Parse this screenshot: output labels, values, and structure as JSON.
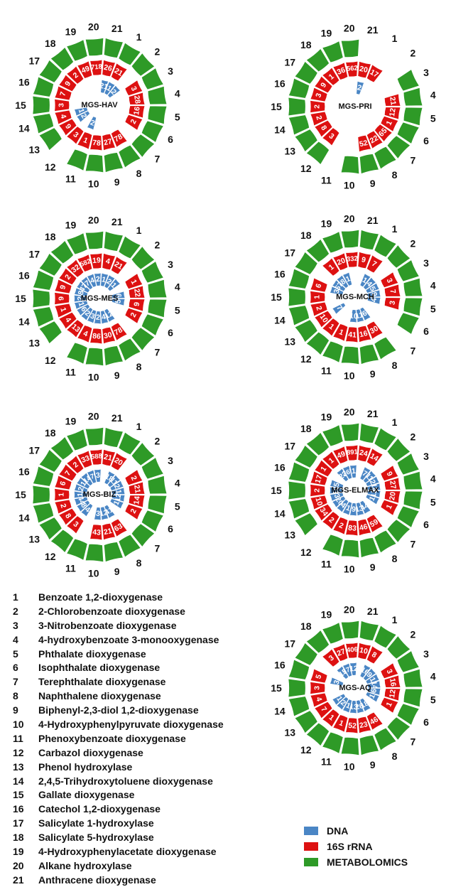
{
  "chart_data": [
    {
      "type": "radial",
      "title": "MGS-HAV",
      "rings": [
        {
          "name": "DNA",
          "color": "#4a86c5",
          "values": {
            "2": "2",
            "1": "1",
            "11": "2",
            "13": "2",
            "14": "1",
            "21": "21"
          }
        },
        {
          "name": "16S rRNA",
          "color": "#dd1111",
          "values": {
            "1": "21",
            "3": "3",
            "4": "28",
            "5": "16",
            "6": "2",
            "8": "78",
            "9": "27",
            "10": "78",
            "11": "1",
            "12": "3",
            "13": "9",
            "14": "4",
            "15": "3",
            "16": "7",
            "17": "9",
            "18": "2",
            "19": "49",
            "20": "718",
            "21": "26"
          }
        },
        {
          "name": "METABOLOMICS",
          "color": "#2e9a27",
          "values": {
            "1": "",
            "2": "",
            "3": "",
            "4": "",
            "5": "",
            "6": "",
            "7": "",
            "8": "",
            "9": "",
            "10": "",
            "11": "",
            "13": "",
            "14": "",
            "15": "",
            "16": "",
            "17": "",
            "18": "",
            "19": "",
            "20": "",
            "21": ""
          }
        }
      ]
    },
    {
      "type": "radial",
      "title": "MGS-PRI",
      "rings": [
        {
          "name": "DNA",
          "color": "#4a86c5",
          "values": {
            "21": "2"
          }
        },
        {
          "name": "16S rRNA",
          "color": "#dd1111",
          "values": {
            "1": "17",
            "4": "21",
            "5": "12",
            "6": "1",
            "7": "65",
            "8": "22",
            "9": "52",
            "12": "3",
            "13": "8",
            "14": "2",
            "15": "2",
            "16": "3",
            "17": "9",
            "18": "1",
            "19": "36",
            "20": "562",
            "21": "20"
          }
        },
        {
          "name": "METABOLOMICS",
          "color": "#2e9a27",
          "values": {
            "3": "",
            "4": "",
            "5": "",
            "6": "",
            "7": "",
            "8": "",
            "9": "",
            "10": "",
            "12": "",
            "13": "",
            "14": "",
            "15": "",
            "16": "",
            "17": "",
            "18": "",
            "19": "",
            "20": ""
          }
        }
      ]
    },
    {
      "type": "radial",
      "title": "MGS-MES",
      "rings": [
        {
          "name": "DNA",
          "color": "#4a86c5",
          "values": {
            "1": "2",
            "2": "1",
            "4": "6",
            "5": "5",
            "8": "12",
            "9": "4",
            "10": "2",
            "11": "3",
            "12": "2",
            "13": "6",
            "14": "1",
            "15": "2",
            "16": "8",
            "17": "47",
            "18": "7",
            "19": "4",
            "20": "2",
            "21": "1"
          }
        },
        {
          "name": "16S rRNA",
          "color": "#dd1111",
          "values": {
            "1": "21",
            "3": "1",
            "4": "22",
            "5": "9",
            "6": "2",
            "8": "78",
            "9": "30",
            "10": "86",
            "11": "4",
            "12": "13",
            "13": "4",
            "14": "1",
            "15": "9",
            "16": "9",
            "17": "2",
            "18": "32",
            "19": "582",
            "20": "19",
            "21": "4"
          }
        },
        {
          "name": "METABOLOMICS",
          "color": "#2e9a27",
          "values": {
            "1": "",
            "2": "",
            "3": "",
            "4": "",
            "5": "",
            "6": "",
            "7": "",
            "8": "",
            "9": "",
            "10": "",
            "11": "",
            "13": "",
            "14": "",
            "15": "",
            "16": "",
            "17": "",
            "18": "",
            "19": "",
            "20": "",
            "21": ""
          }
        }
      ]
    },
    {
      "type": "radial",
      "title": "MGS-MCH",
      "rings": [
        {
          "name": "DNA",
          "color": "#4a86c5",
          "values": {
            "1": "1",
            "2": "4",
            "3": "5",
            "4": "9",
            "5": "4",
            "8": "6",
            "9": "11",
            "10": "10",
            "13": "7",
            "16": "3",
            "17": "57",
            "18": "8",
            "19": "1"
          }
        },
        {
          "name": "16S rRNA",
          "color": "#dd1111",
          "values": {
            "1": "7",
            "3": "3",
            "4": "7",
            "5": "3",
            "8": "30",
            "9": "16",
            "10": "41",
            "11": "1",
            "12": "1",
            "13": "10",
            "14": "2",
            "15": "1",
            "16": "6",
            "18": "1",
            "19": "20",
            "20": "332",
            "21": "9"
          }
        },
        {
          "name": "METABOLOMICS",
          "color": "#2e9a27",
          "values": {
            "1": "",
            "2": "",
            "3": "",
            "4": "",
            "5": "",
            "6": "",
            "8": "",
            "9": "",
            "10": "",
            "11": "",
            "12": "",
            "13": "",
            "14": "",
            "15": "",
            "16": "",
            "17": "",
            "18": "",
            "19": "",
            "20": "",
            "21": ""
          }
        }
      ]
    },
    {
      "type": "radial",
      "title": "MGS-BIZ",
      "rings": [
        {
          "name": "DNA",
          "color": "#4a86c5",
          "values": {
            "1": "18",
            "2": "11",
            "3": "2",
            "4": "1",
            "5": "12",
            "6": "1",
            "8": "41",
            "9": "12",
            "10": "3",
            "12": "4",
            "13": "8",
            "14": "44",
            "15": "1",
            "16": "2",
            "17": "1",
            "18": "14",
            "19": "179",
            "20": "3"
          }
        },
        {
          "name": "16S rRNA",
          "color": "#dd1111",
          "values": {
            "1": "20",
            "3": "2",
            "4": "21",
            "5": "14",
            "6": "2",
            "8": "63",
            "9": "21",
            "10": "43",
            "12": "3",
            "13": "8",
            "14": "2",
            "15": "1",
            "16": "6",
            "17": "7",
            "18": "2",
            "19": "33",
            "20": "588",
            "21": "21"
          }
        },
        {
          "name": "METABOLOMICS",
          "color": "#2e9a27",
          "values": {
            "1": "",
            "2": "",
            "3": "",
            "4": "",
            "5": "",
            "6": "",
            "7": "",
            "8": "",
            "9": "",
            "10": "",
            "11": "",
            "12": "",
            "13": "",
            "14": "",
            "15": "",
            "16": "",
            "17": "",
            "18": "",
            "19": "",
            "20": "",
            "21": ""
          }
        }
      ]
    },
    {
      "type": "radial",
      "title": "MGS-ELMAX",
      "rings": [
        {
          "name": "DNA",
          "color": "#4a86c5",
          "values": {
            "1": "7",
            "2": "11",
            "3": "2",
            "4": "16",
            "5": "12",
            "6": "1",
            "8": "44",
            "9": "13",
            "10": "9",
            "11": "1",
            "12": "4",
            "13": "20",
            "14": "3",
            "15": "10",
            "16": "5",
            "18": "23",
            "19": "265",
            "20": "1"
          }
        },
        {
          "name": "16S rRNA",
          "color": "#dd1111",
          "values": {
            "1": "14",
            "3": "9",
            "4": "27",
            "5": "20",
            "6": "1",
            "8": "59",
            "9": "46",
            "10": "83",
            "11": "2",
            "12": "2",
            "13": "34",
            "14": "10",
            "15": "2",
            "16": "17",
            "17": "1",
            "18": "1",
            "19": "49",
            "20": "891",
            "21": "24"
          }
        },
        {
          "name": "METABOLOMICS",
          "color": "#2e9a27",
          "values": {
            "1": "",
            "2": "",
            "3": "",
            "4": "",
            "5": "",
            "6": "",
            "7": "",
            "8": "",
            "9": "",
            "10": "",
            "11": "",
            "13": "",
            "14": "",
            "15": "",
            "16": "",
            "17": "",
            "18": "",
            "19": "",
            "20": "",
            "21": ""
          }
        }
      ]
    },
    {
      "type": "radial",
      "title": "MGS-AQ",
      "rings": [
        {
          "name": "DNA",
          "color": "#4a86c5",
          "values": {
            "1": "16",
            "2": "9",
            "3": "1",
            "4": "14",
            "5": "6",
            "6": "1",
            "8": "18",
            "9": "26",
            "10": "13",
            "11": "1",
            "12": "2",
            "13": "1",
            "16": "3",
            "18": "15",
            "19": "177",
            "20": "12"
          }
        },
        {
          "name": "16S rRNA",
          "color": "#dd1111",
          "values": {
            "1": "8",
            "3": "3",
            "4": "16",
            "5": "12",
            "6": "1",
            "8": "46",
            "9": "23",
            "10": "52",
            "11": "1",
            "12": "1",
            "13": "7",
            "14": "4",
            "15": "3",
            "16": "5",
            "18": "3",
            "19": "27",
            "20": "406",
            "21": "10"
          }
        },
        {
          "name": "METABOLOMICS",
          "color": "#2e9a27",
          "values": {
            "1": "",
            "2": "",
            "3": "",
            "4": "",
            "5": "",
            "6": "",
            "7": "",
            "8": "",
            "9": "",
            "10": "",
            "11": "",
            "12": "",
            "13": "",
            "14": "",
            "15": "",
            "16": "",
            "17": "",
            "18": "",
            "19": "",
            "20": "",
            "21": ""
          }
        }
      ]
    }
  ],
  "enzymes": [
    {
      "num": "1",
      "name": "Benzoate 1,2-dioxygenase"
    },
    {
      "num": "2",
      "name": "2-Chlorobenzoate dioxygenase"
    },
    {
      "num": "3",
      "name": "3-Nitrobenzoate dioxygenase"
    },
    {
      "num": "4",
      "name": "4-hydroxybenzoate 3-monooxygenase"
    },
    {
      "num": "5",
      "name": "Phthalate dioxygenase"
    },
    {
      "num": "6",
      "name": "Isophthalate dioxygenase"
    },
    {
      "num": "7",
      "name": "Terephthalate dioxygenase"
    },
    {
      "num": "8",
      "name": "Naphthalene dioxygenase"
    },
    {
      "num": "9",
      "name": "Biphenyl-2,3-diol 1,2-dioxygenase"
    },
    {
      "num": "10",
      "name": "4-Hydroxyphenylpyruvate dioxygenase"
    },
    {
      "num": "11",
      "name": "Phenoxybenzoate dioxygenase"
    },
    {
      "num": "12",
      "name": "Carbazol dioxygenase"
    },
    {
      "num": "13",
      "name": "Phenol hydroxylase"
    },
    {
      "num": "14",
      "name": "2,4,5-Trihydroxytoluene dioxygenase"
    },
    {
      "num": "15",
      "name": "Gallate dioxygenase"
    },
    {
      "num": "16",
      "name": "Catechol 1,2-dioxygenase"
    },
    {
      "num": "17",
      "name": "Salicylate 1-hydroxylase"
    },
    {
      "num": "18",
      "name": "Salicylate 5-hydroxylase"
    },
    {
      "num": "19",
      "name": "4-Hydroxyphenylacetate dioxygenase"
    },
    {
      "num": "20",
      "name": "Alkane hydroxylase"
    },
    {
      "num": "21",
      "name": "Anthracene dioxygenase"
    }
  ],
  "legend": [
    {
      "label": "DNA",
      "color": "#4a86c5"
    },
    {
      "label": "16S rRNA",
      "color": "#dd1111"
    },
    {
      "label": "METABOLOMICS",
      "color": "#2e9a27"
    }
  ]
}
